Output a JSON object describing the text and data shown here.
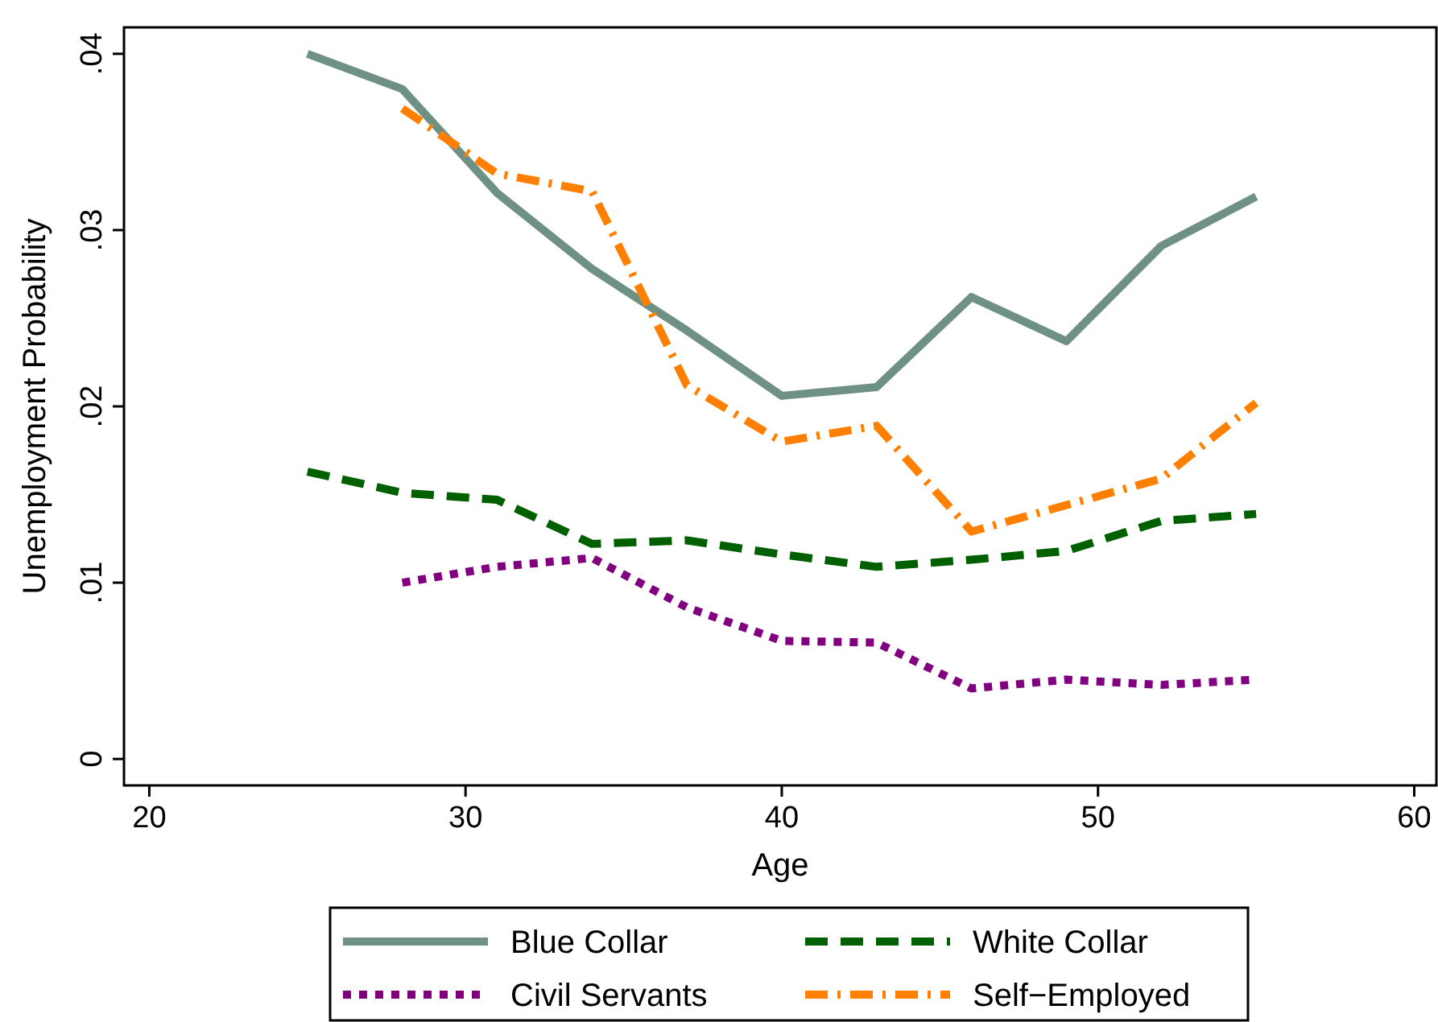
{
  "chart_data": {
    "type": "line",
    "xlabel": "Age",
    "ylabel": "Unemployment Probability",
    "xlim": [
      19.2,
      60.7
    ],
    "ylim": [
      -0.0015,
      0.0415
    ],
    "xticks": [
      20,
      30,
      40,
      50,
      60
    ],
    "yticks": [
      {
        "value": 0,
        "label": "0"
      },
      {
        "value": 0.01,
        "label": ".01"
      },
      {
        "value": 0.02,
        "label": ".02"
      },
      {
        "value": 0.03,
        "label": ".03"
      },
      {
        "value": 0.04,
        "label": ".04"
      }
    ],
    "grid": false,
    "legend": "bottom",
    "x": [
      25,
      28,
      31,
      34,
      37,
      40,
      43,
      46,
      49,
      52,
      55
    ],
    "series": [
      {
        "name": "Blue Collar",
        "color": "#6f9185",
        "line_style": "solid",
        "values": [
          0.04,
          0.038,
          0.0321,
          0.0278,
          0.0243,
          0.0206,
          0.0211,
          0.0262,
          0.0237,
          0.0291,
          0.0319
        ]
      },
      {
        "name": "White Collar",
        "color": "#006000",
        "line_style": "dashed",
        "values": [
          0.0163,
          0.0151,
          0.0147,
          0.0122,
          0.0124,
          0.0116,
          0.0109,
          0.0113,
          0.0118,
          0.0135,
          0.0139
        ]
      },
      {
        "name": "Civil Servants",
        "color": "#800080",
        "line_style": "dotted",
        "values": [
          null,
          0.01,
          0.0109,
          0.0114,
          0.0086,
          0.0067,
          0.0066,
          0.004,
          0.0045,
          0.0042,
          0.0045
        ]
      },
      {
        "name": "Self−Employed",
        "color": "#ff8000",
        "line_style": "dashdot",
        "values": [
          null,
          0.0369,
          0.0332,
          0.0322,
          0.0212,
          0.018,
          0.0189,
          0.0129,
          0.0144,
          0.0159,
          0.0202
        ]
      }
    ]
  }
}
